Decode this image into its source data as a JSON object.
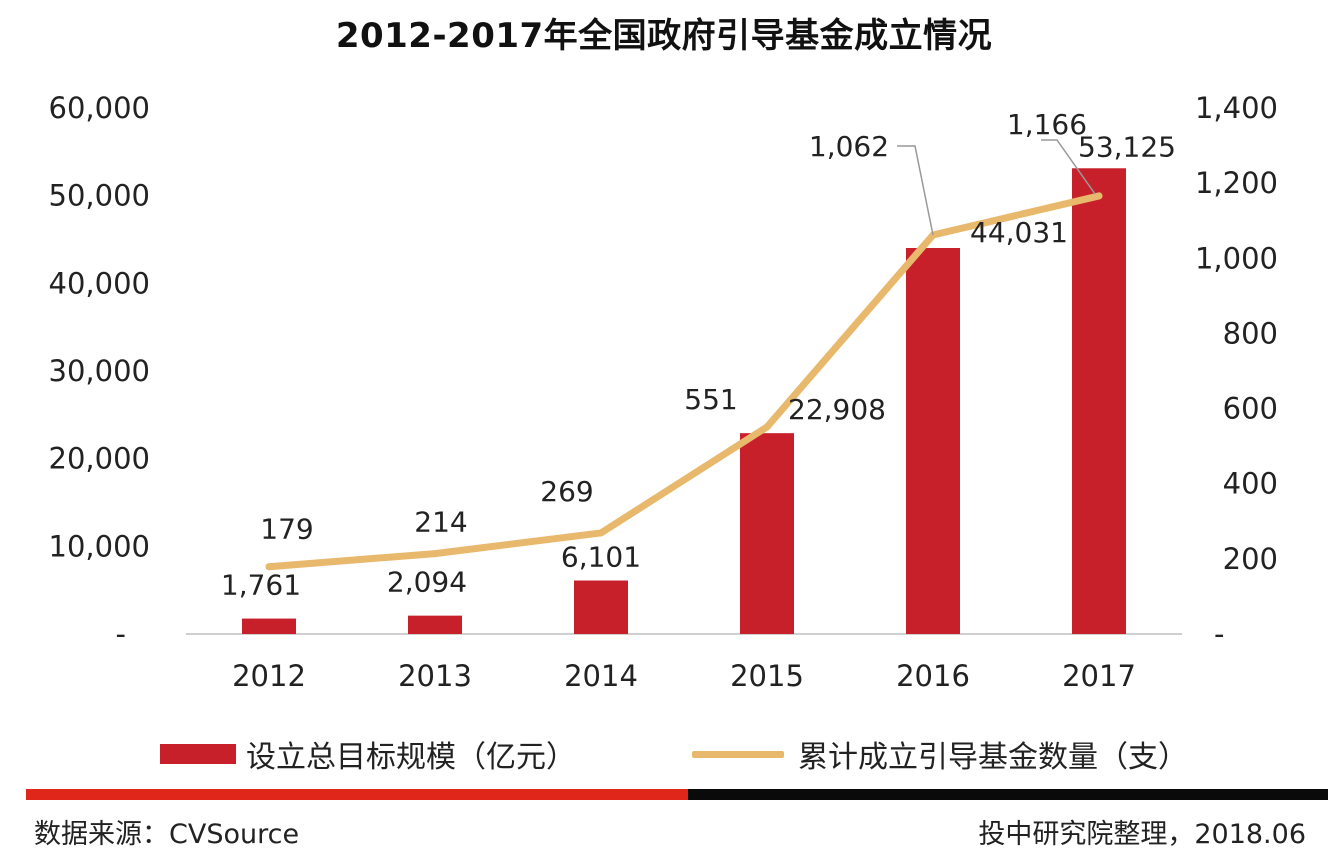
{
  "chart_data": {
    "type": "bar+line",
    "title": "2012-2017年全国政府引导基金成立情况",
    "categories": [
      "2012",
      "2013",
      "2014",
      "2015",
      "2016",
      "2017"
    ],
    "series": [
      {
        "name": "设立总目标规模（亿元）",
        "type": "bar",
        "axis": "left",
        "values": [
          1761,
          2094,
          6101,
          22908,
          44031,
          53125
        ],
        "labels": [
          "1,761",
          "2,094",
          "6,101",
          "22,908",
          "44,031",
          "53,125"
        ]
      },
      {
        "name": "累计成立引导基金数量（支）",
        "type": "line",
        "axis": "right",
        "values": [
          179,
          214,
          269,
          551,
          1062,
          1166
        ],
        "labels": [
          "179",
          "214",
          "269",
          "551",
          "1,062",
          "1,166"
        ]
      }
    ],
    "left_axis": {
      "ylim": [
        0,
        60000
      ],
      "ticks": [
        0,
        10000,
        20000,
        30000,
        40000,
        50000,
        60000
      ],
      "tick_labels": [
        "-",
        "10,000",
        "20,000",
        "30,000",
        "40,000",
        "50,000",
        "60,000"
      ]
    },
    "right_axis": {
      "ylim": [
        0,
        1400
      ],
      "ticks": [
        0,
        200,
        400,
        600,
        800,
        1000,
        1200,
        1400
      ],
      "tick_labels": [
        "-",
        "200",
        "400",
        "600",
        "800",
        "1,000",
        "1,200",
        "1,400"
      ]
    },
    "grid": false,
    "legend_position": "bottom",
    "colors": {
      "bar": "#c8202a",
      "line": "#e8b86c"
    }
  },
  "legend": {
    "bar_label": "设立总目标规模（亿元）",
    "line_label": "累计成立引导基金数量（支）"
  },
  "footer": {
    "source": "数据来源：CVSource",
    "credit": "投中研究院整理，2018.06"
  },
  "colors": {
    "rule_red": "#e0251b",
    "rule_black": "#0a0a0a"
  }
}
